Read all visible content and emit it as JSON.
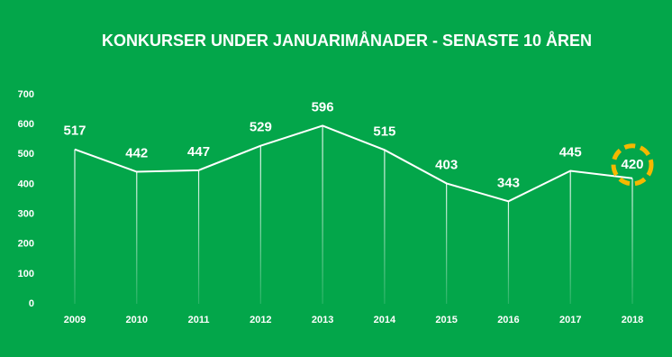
{
  "chart_data": {
    "type": "line",
    "title": "KONKURSER UNDER JANUARIMÅNADER - SENASTE 10 ÅREN",
    "categories": [
      "2009",
      "2010",
      "2011",
      "2012",
      "2013",
      "2014",
      "2015",
      "2016",
      "2017",
      "2018"
    ],
    "values": [
      517,
      442,
      447,
      529,
      596,
      515,
      403,
      343,
      445,
      420
    ],
    "color": "#ffffff",
    "highlight_color": "#f5b800",
    "ylim": [
      0,
      700
    ],
    "yticks": [
      0,
      100,
      200,
      300,
      400,
      500,
      600,
      700
    ],
    "drop_lines": true
  }
}
